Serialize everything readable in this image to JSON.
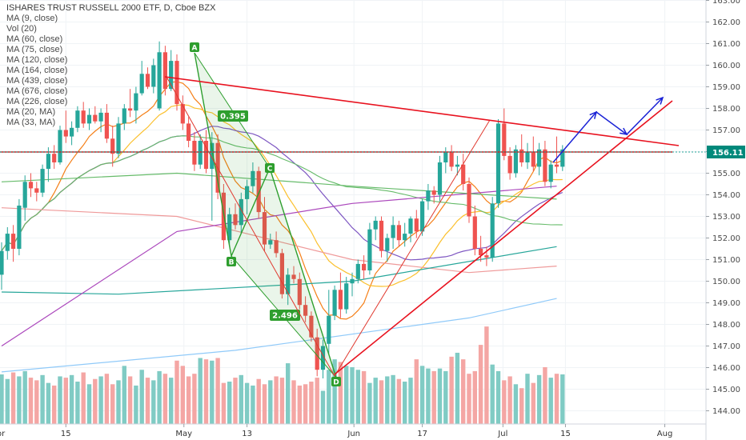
{
  "header": {
    "title": "ISHARES TRUST RUSSELL 2000 ETF, D, Cboe BZX",
    "indicators": [
      "MA (9, close)",
      "Vol (20)",
      "MA (60, close)",
      "MA (75, close)",
      "MA (120, close)",
      "MA (164, close)",
      "MA (439, close)",
      "MA (676, close)",
      "MA (226, close)",
      "MA (20, MA)",
      "MA (33, MA)"
    ]
  },
  "price_tag": {
    "value": "156.11",
    "color": "#00897b"
  },
  "colors": {
    "up": "#26a69a",
    "down": "#ef5350",
    "vol_up": "#80cbc4",
    "vol_down": "#f4a6a4",
    "trend": "#e8121f",
    "abcd": "#2e9e2e",
    "fib": "#e0392f",
    "projection": "#1a22d6"
  },
  "pattern_labels": {
    "A": "A",
    "B": "B",
    "C": "C",
    "D": "D",
    "r1": "0.395",
    "r2": "2.496"
  },
  "chart_data": {
    "type": "candlestick",
    "title": "ISHARES TRUST RUSSELL 2000 ETF, D, Cboe BZX",
    "xlabel": "",
    "ylabel": "",
    "ylim": [
      143.8,
      163.2
    ],
    "y_ticks": [
      "144.00",
      "145.00",
      "146.00",
      "147.00",
      "148.00",
      "149.00",
      "150.00",
      "151.00",
      "152.00",
      "153.00",
      "154.00",
      "155.00",
      "156.00",
      "157.00",
      "158.00",
      "159.00",
      "160.00",
      "161.00",
      "162.00",
      "163.00"
    ],
    "x_ticks": [
      "Apr",
      "15",
      "May",
      "13",
      "Jun",
      "17",
      "Jul",
      "15",
      "Aug"
    ],
    "last_price": 156.11,
    "candles": [
      {
        "date": "2018-03-28",
        "o": 150.3,
        "h": 151.8,
        "l": 149.6,
        "c": 151.4
      },
      {
        "date": "2018-03-29",
        "o": 151.4,
        "h": 152.5,
        "l": 151.0,
        "c": 152.2
      },
      {
        "date": "2018-04-02",
        "o": 152.2,
        "h": 152.6,
        "l": 150.9,
        "c": 151.5
      },
      {
        "date": "2018-04-03",
        "o": 151.5,
        "h": 153.8,
        "l": 151.2,
        "c": 153.5
      },
      {
        "date": "2018-04-04",
        "o": 153.4,
        "h": 154.9,
        "l": 152.8,
        "c": 154.6
      },
      {
        "date": "2018-04-05",
        "o": 154.6,
        "h": 155.0,
        "l": 153.9,
        "c": 154.3
      },
      {
        "date": "2018-04-06",
        "o": 154.3,
        "h": 154.6,
        "l": 153.7,
        "c": 154.1
      },
      {
        "date": "2018-04-09",
        "o": 154.1,
        "h": 155.4,
        "l": 153.9,
        "c": 155.2
      },
      {
        "date": "2018-04-10",
        "o": 155.2,
        "h": 156.2,
        "l": 154.6,
        "c": 155.9
      },
      {
        "date": "2018-04-11",
        "o": 155.9,
        "h": 156.3,
        "l": 155.2,
        "c": 155.5
      },
      {
        "date": "2018-04-12",
        "o": 155.5,
        "h": 157.2,
        "l": 155.4,
        "c": 157.0
      },
      {
        "date": "2018-04-13",
        "o": 157.0,
        "h": 157.9,
        "l": 156.4,
        "c": 156.7
      },
      {
        "date": "2018-04-16",
        "o": 156.7,
        "h": 157.4,
        "l": 156.3,
        "c": 157.1
      },
      {
        "date": "2018-04-17",
        "o": 157.1,
        "h": 158.1,
        "l": 156.9,
        "c": 157.9
      },
      {
        "date": "2018-04-18",
        "o": 157.9,
        "h": 158.3,
        "l": 157.1,
        "c": 157.3
      },
      {
        "date": "2018-04-19",
        "o": 157.3,
        "h": 158.0,
        "l": 157.0,
        "c": 157.7
      },
      {
        "date": "2018-04-20",
        "o": 157.7,
        "h": 158.1,
        "l": 157.3,
        "c": 157.4
      },
      {
        "date": "2018-04-23",
        "o": 157.4,
        "h": 158.0,
        "l": 156.9,
        "c": 157.8
      },
      {
        "date": "2018-04-24",
        "o": 157.8,
        "h": 158.2,
        "l": 156.4,
        "c": 156.6
      },
      {
        "date": "2018-04-25",
        "o": 156.6,
        "h": 157.2,
        "l": 155.3,
        "c": 155.9
      },
      {
        "date": "2018-04-26",
        "o": 155.9,
        "h": 157.6,
        "l": 155.7,
        "c": 157.3
      },
      {
        "date": "2018-04-27",
        "o": 157.3,
        "h": 158.2,
        "l": 157.0,
        "c": 158.0
      },
      {
        "date": "2018-04-30",
        "o": 158.0,
        "h": 158.9,
        "l": 157.6,
        "c": 157.9
      },
      {
        "date": "2018-05-01",
        "o": 157.9,
        "h": 159.0,
        "l": 157.3,
        "c": 158.7
      },
      {
        "date": "2018-05-02",
        "o": 158.7,
        "h": 160.2,
        "l": 158.6,
        "c": 159.6
      },
      {
        "date": "2018-05-03",
        "o": 159.6,
        "h": 159.9,
        "l": 158.9,
        "c": 159.0
      },
      {
        "date": "2018-05-04",
        "o": 159.0,
        "h": 160.3,
        "l": 158.7,
        "c": 160.0
      },
      {
        "date": "2018-05-07",
        "o": 158.0,
        "h": 161.1,
        "l": 157.9,
        "c": 160.6
      },
      {
        "date": "2018-05-08",
        "o": 160.6,
        "h": 160.9,
        "l": 158.6,
        "c": 158.9
      },
      {
        "date": "2018-05-09",
        "o": 158.9,
        "h": 160.7,
        "l": 158.8,
        "c": 160.2
      },
      {
        "date": "2018-05-10",
        "o": 160.2,
        "h": 160.5,
        "l": 157.9,
        "c": 158.2
      },
      {
        "date": "2018-05-11",
        "o": 158.2,
        "h": 158.6,
        "l": 157.0,
        "c": 157.3
      },
      {
        "date": "2018-05-14",
        "o": 157.3,
        "h": 157.6,
        "l": 156.2,
        "c": 156.5
      },
      {
        "date": "2018-05-15",
        "o": 156.5,
        "h": 156.9,
        "l": 155.1,
        "c": 155.4
      },
      {
        "date": "2018-05-16",
        "o": 155.4,
        "h": 156.8,
        "l": 155.2,
        "c": 156.5
      },
      {
        "date": "2018-05-17",
        "o": 156.5,
        "h": 157.0,
        "l": 155.0,
        "c": 155.2
      },
      {
        "date": "2018-05-18",
        "o": 155.2,
        "h": 156.9,
        "l": 152.8,
        "c": 156.4
      },
      {
        "date": "2018-05-21",
        "o": 156.4,
        "h": 156.8,
        "l": 153.8,
        "c": 154.1
      },
      {
        "date": "2018-05-22",
        "o": 154.1,
        "h": 154.5,
        "l": 151.5,
        "c": 151.9
      },
      {
        "date": "2018-05-23",
        "o": 151.9,
        "h": 153.4,
        "l": 151.6,
        "c": 153.1
      },
      {
        "date": "2018-05-24",
        "o": 153.1,
        "h": 153.6,
        "l": 152.4,
        "c": 152.6
      },
      {
        "date": "2018-05-25",
        "o": 152.6,
        "h": 154.1,
        "l": 152.2,
        "c": 153.8
      },
      {
        "date": "2018-05-29",
        "o": 153.8,
        "h": 154.7,
        "l": 153.1,
        "c": 154.4
      },
      {
        "date": "2018-05-30",
        "o": 154.4,
        "h": 155.5,
        "l": 154.1,
        "c": 155.1
      },
      {
        "date": "2018-05-31",
        "o": 155.1,
        "h": 155.3,
        "l": 152.9,
        "c": 153.2
      },
      {
        "date": "2018-06-01",
        "o": 153.2,
        "h": 153.9,
        "l": 151.4,
        "c": 151.7
      },
      {
        "date": "2018-06-04",
        "o": 151.7,
        "h": 152.2,
        "l": 151.5,
        "c": 151.9
      },
      {
        "date": "2018-06-05",
        "o": 151.9,
        "h": 152.3,
        "l": 151.1,
        "c": 151.3
      },
      {
        "date": "2018-06-06",
        "o": 151.3,
        "h": 151.5,
        "l": 149.2,
        "c": 149.4
      },
      {
        "date": "2018-06-07",
        "o": 149.4,
        "h": 150.6,
        "l": 148.9,
        "c": 150.3
      },
      {
        "date": "2018-06-08",
        "o": 150.3,
        "h": 150.7,
        "l": 149.9,
        "c": 150.1
      },
      {
        "date": "2018-06-11",
        "o": 150.1,
        "h": 150.4,
        "l": 148.7,
        "c": 148.9
      },
      {
        "date": "2018-06-12",
        "o": 148.9,
        "h": 149.3,
        "l": 148.1,
        "c": 148.4
      },
      {
        "date": "2018-06-13",
        "o": 148.4,
        "h": 148.6,
        "l": 147.2,
        "c": 147.4
      },
      {
        "date": "2018-06-14",
        "o": 147.4,
        "h": 147.8,
        "l": 145.6,
        "c": 145.9
      },
      {
        "date": "2018-06-15",
        "o": 145.9,
        "h": 147.3,
        "l": 145.5,
        "c": 147.0
      },
      {
        "date": "2018-06-18",
        "o": 147.1,
        "h": 149.6,
        "l": 146.6,
        "c": 148.4
      },
      {
        "date": "2018-06-19",
        "o": 148.4,
        "h": 149.8,
        "l": 148.2,
        "c": 149.6
      },
      {
        "date": "2018-06-20",
        "o": 149.6,
        "h": 150.4,
        "l": 148.3,
        "c": 148.7
      },
      {
        "date": "2018-06-21",
        "o": 148.7,
        "h": 150.2,
        "l": 148.5,
        "c": 149.9
      },
      {
        "date": "2018-06-22",
        "o": 149.9,
        "h": 150.4,
        "l": 149.3,
        "c": 150.1
      },
      {
        "date": "2018-06-25",
        "o": 150.1,
        "h": 151.0,
        "l": 149.9,
        "c": 150.8
      },
      {
        "date": "2018-06-26",
        "o": 150.8,
        "h": 151.2,
        "l": 150.1,
        "c": 150.5
      },
      {
        "date": "2018-06-27",
        "o": 150.5,
        "h": 152.7,
        "l": 150.3,
        "c": 152.4
      },
      {
        "date": "2018-06-28",
        "o": 152.4,
        "h": 153.0,
        "l": 151.9,
        "c": 152.8
      },
      {
        "date": "2018-06-29",
        "o": 152.8,
        "h": 153.0,
        "l": 151.1,
        "c": 151.4
      },
      {
        "date": "2018-07-02",
        "o": 151.4,
        "h": 152.2,
        "l": 150.9,
        "c": 152.0
      },
      {
        "date": "2018-07-03",
        "o": 152.0,
        "h": 153.0,
        "l": 151.5,
        "c": 152.6
      },
      {
        "date": "2018-07-05",
        "o": 152.6,
        "h": 152.8,
        "l": 151.6,
        "c": 151.9
      },
      {
        "date": "2018-07-06",
        "o": 151.9,
        "h": 152.7,
        "l": 151.6,
        "c": 152.2
      },
      {
        "date": "2018-07-09",
        "o": 152.2,
        "h": 153.0,
        "l": 151.8,
        "c": 152.9
      },
      {
        "date": "2018-07-10",
        "o": 152.9,
        "h": 153.3,
        "l": 152.0,
        "c": 152.3
      },
      {
        "date": "2018-07-11",
        "o": 152.3,
        "h": 153.8,
        "l": 152.1,
        "c": 153.7
      },
      {
        "date": "2018-07-12",
        "o": 153.7,
        "h": 154.5,
        "l": 153.3,
        "c": 154.2
      },
      {
        "date": "2018-07-13",
        "o": 154.2,
        "h": 154.4,
        "l": 153.6,
        "c": 154.0
      },
      {
        "date": "2018-07-16",
        "o": 154.0,
        "h": 155.8,
        "l": 153.7,
        "c": 155.5
      },
      {
        "date": "2018-07-17",
        "o": 155.5,
        "h": 156.2,
        "l": 155.0,
        "c": 156.0
      },
      {
        "date": "2018-07-18",
        "o": 156.0,
        "h": 156.3,
        "l": 155.1,
        "c": 155.3
      },
      {
        "date": "2018-07-19",
        "o": 155.3,
        "h": 155.8,
        "l": 154.9,
        "c": 155.4
      },
      {
        "date": "2018-07-20",
        "o": 155.4,
        "h": 155.9,
        "l": 154.2,
        "c": 154.5
      },
      {
        "date": "2018-07-23",
        "o": 154.5,
        "h": 154.8,
        "l": 152.7,
        "c": 153.0
      },
      {
        "date": "2018-07-24",
        "o": 153.0,
        "h": 153.5,
        "l": 151.2,
        "c": 151.5
      },
      {
        "date": "2018-07-25",
        "o": 151.5,
        "h": 152.1,
        "l": 150.9,
        "c": 151.2
      },
      {
        "date": "2018-07-26",
        "o": 151.2,
        "h": 151.6,
        "l": 150.7,
        "c": 151.1
      },
      {
        "date": "2018-07-27",
        "o": 151.1,
        "h": 153.9,
        "l": 150.9,
        "c": 153.6
      },
      {
        "date": "2018-07-30",
        "o": 153.6,
        "h": 157.5,
        "l": 153.4,
        "c": 157.3
      },
      {
        "date": "2018-07-31",
        "o": 157.3,
        "h": 158.0,
        "l": 155.6,
        "c": 155.8
      },
      {
        "date": "2018-08-01",
        "o": 155.8,
        "h": 156.2,
        "l": 154.7,
        "c": 155.0
      },
      {
        "date": "2018-08-02",
        "o": 155.0,
        "h": 156.3,
        "l": 154.8,
        "c": 156.1
      },
      {
        "date": "2018-08-03",
        "o": 156.1,
        "h": 156.8,
        "l": 155.3,
        "c": 155.5
      },
      {
        "date": "2018-08-06",
        "o": 155.5,
        "h": 156.4,
        "l": 155.2,
        "c": 156.0
      },
      {
        "date": "2018-08-07",
        "o": 156.0,
        "h": 156.7,
        "l": 155.1,
        "c": 155.3
      },
      {
        "date": "2018-08-08",
        "o": 155.3,
        "h": 156.4,
        "l": 154.9,
        "c": 156.1
      },
      {
        "date": "2018-08-09",
        "o": 156.1,
        "h": 156.5,
        "l": 154.4,
        "c": 154.6
      },
      {
        "date": "2018-08-10",
        "o": 154.6,
        "h": 155.6,
        "l": 154.3,
        "c": 155.4
      },
      {
        "date": "2018-08-13",
        "o": 155.4,
        "h": 156.7,
        "l": 155.0,
        "c": 155.3
      },
      {
        "date": "2018-08-14",
        "o": 155.3,
        "h": 156.3,
        "l": 155.1,
        "c": 156.1
      }
    ]
  }
}
